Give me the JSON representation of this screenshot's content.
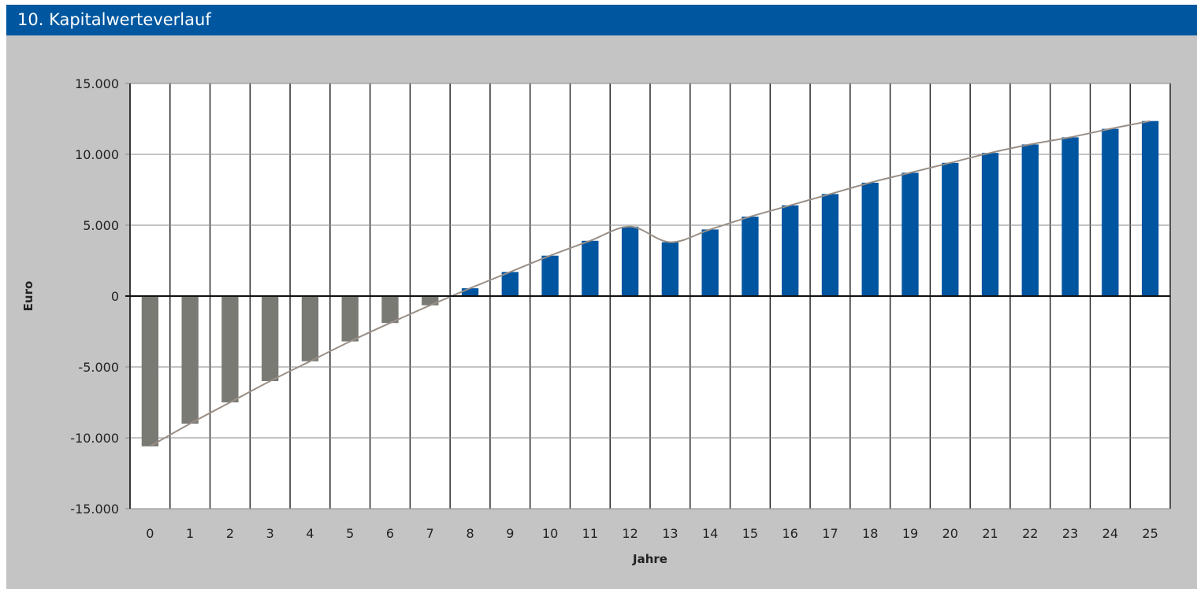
{
  "header": {
    "title": "10. Kapitalwerteverlauf"
  },
  "chart_data": {
    "type": "bar",
    "title": "",
    "xlabel": "Jahre",
    "ylabel": "Euro",
    "ylim": [
      -15000,
      15000
    ],
    "yticks": [
      15000,
      10000,
      5000,
      0,
      -5000,
      -10000,
      -15000
    ],
    "ytick_labels": [
      "15.000",
      "10.000",
      "5.000",
      "0",
      "-5.000",
      "-10.000",
      "-15.000"
    ],
    "grid": true,
    "categories": [
      "0",
      "1",
      "2",
      "3",
      "4",
      "5",
      "6",
      "7",
      "8",
      "9",
      "10",
      "11",
      "12",
      "13",
      "14",
      "15",
      "16",
      "17",
      "18",
      "19",
      "20",
      "21",
      "22",
      "23",
      "24",
      "25"
    ],
    "series": [
      {
        "type": "bar",
        "values": [
          -10600,
          -9000,
          -7500,
          -6000,
          -4600,
          -3200,
          -1900,
          -650,
          550,
          1700,
          2850,
          3900,
          4900,
          3800,
          4700,
          5600,
          6400,
          7200,
          8000,
          8700,
          9400,
          10100,
          10700,
          11200,
          11800,
          12350
        ]
      },
      {
        "type": "line",
        "values": [
          -10600,
          -9000,
          -7500,
          -6000,
          -4600,
          -3200,
          -1900,
          -650,
          550,
          1700,
          2850,
          3900,
          4900,
          3800,
          4700,
          5600,
          6400,
          7200,
          8000,
          8700,
          9400,
          10100,
          10700,
          11200,
          11800,
          12350
        ]
      }
    ],
    "colors": {
      "negative": "#7a7a74",
      "positive": "#0055a0",
      "line": "#9a8f86",
      "background": "#c4c4c4",
      "plot": "#ffffff",
      "header": "#0057a0"
    }
  }
}
